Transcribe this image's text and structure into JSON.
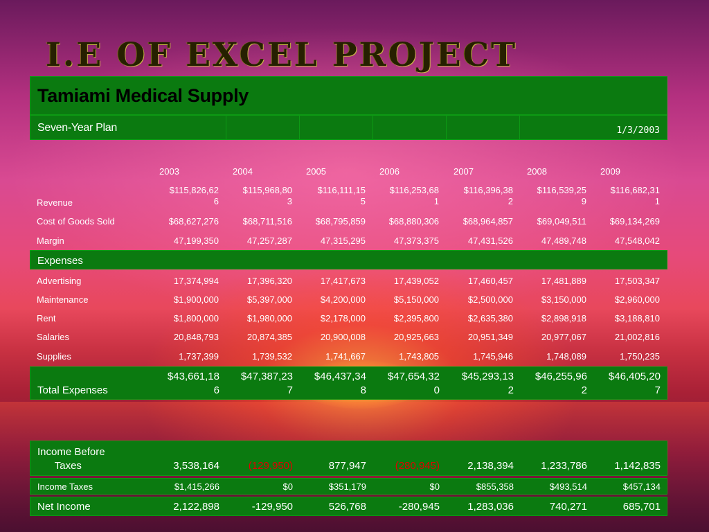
{
  "title": "I.E of Excel Project",
  "company": "Tamiami Medical Supply",
  "subtitle": "Seven-Year Plan",
  "date": "1/3/2003",
  "years": [
    "2003",
    "2004",
    "2005",
    "2006",
    "2007",
    "2008",
    "2009"
  ],
  "revenue": {
    "label": "Revenue",
    "values": [
      "$115,826,62\n6",
      "$115,968,80\n3",
      "$116,111,15\n5",
      "$116,253,68\n1",
      "$116,396,38\n2",
      "$116,539,25\n9",
      "$116,682,31\n1"
    ]
  },
  "cogs": {
    "label": "Cost of Goods Sold",
    "values": [
      "$68,627,276",
      "$68,711,516",
      "$68,795,859",
      "$68,880,306",
      "$68,964,857",
      "$69,049,511",
      "$69,134,269"
    ]
  },
  "margin": {
    "label": "Margin",
    "values": [
      "47,199,350",
      "47,257,287",
      "47,315,295",
      "47,373,375",
      "47,431,526",
      "47,489,748",
      "47,548,042"
    ]
  },
  "expenses_label": "Expenses",
  "advertising": {
    "label": "Advertising",
    "values": [
      "17,374,994",
      "17,396,320",
      "17,417,673",
      "17,439,052",
      "17,460,457",
      "17,481,889",
      "17,503,347"
    ]
  },
  "maintenance": {
    "label": "Maintenance",
    "values": [
      "$1,900,000",
      "$5,397,000",
      "$4,200,000",
      "$5,150,000",
      "$2,500,000",
      "$3,150,000",
      "$2,960,000"
    ]
  },
  "rent": {
    "label": "Rent",
    "values": [
      "$1,800,000",
      "$1,980,000",
      "$2,178,000",
      "$2,395,800",
      "$2,635,380",
      "$2,898,918",
      "$3,188,810"
    ]
  },
  "salaries": {
    "label": "Salaries",
    "values": [
      "20,848,793",
      "20,874,385",
      "20,900,008",
      "20,925,663",
      "20,951,349",
      "20,977,067",
      "21,002,816"
    ]
  },
  "supplies": {
    "label": "Supplies",
    "values": [
      "1,737,399",
      "1,739,532",
      "1,741,667",
      "1,743,805",
      "1,745,946",
      "1,748,089",
      "1,750,235"
    ]
  },
  "total_expenses": {
    "label": "Total Expenses",
    "values": [
      "$43,661,18\n6",
      "$47,387,23\n7",
      "$46,437,34\n8",
      "$47,654,32\n0",
      "$45,293,13\n2",
      "$46,255,96\n2",
      "$46,405,20\n7"
    ]
  },
  "income_before_taxes": {
    "label": "Income Before\nTaxes",
    "values": [
      "3,538,164",
      "(129,950)",
      "877,947",
      "(280,945)",
      "2,138,394",
      "1,233,786",
      "1,142,835"
    ],
    "negative": [
      false,
      true,
      false,
      true,
      false,
      false,
      false
    ]
  },
  "income_taxes": {
    "label": "Income Taxes",
    "values": [
      "$1,415,266",
      "$0",
      "$351,179",
      "$0",
      "$855,358",
      "$493,514",
      "$457,134"
    ]
  },
  "net_income": {
    "label": "Net Income",
    "values": [
      "2,122,898",
      "-129,950",
      "526,768",
      "-280,945",
      "1,283,036",
      "740,271",
      "685,701"
    ]
  },
  "colors": {
    "band": "#0b7a10",
    "negative": "#e10000",
    "title": "#262000"
  }
}
